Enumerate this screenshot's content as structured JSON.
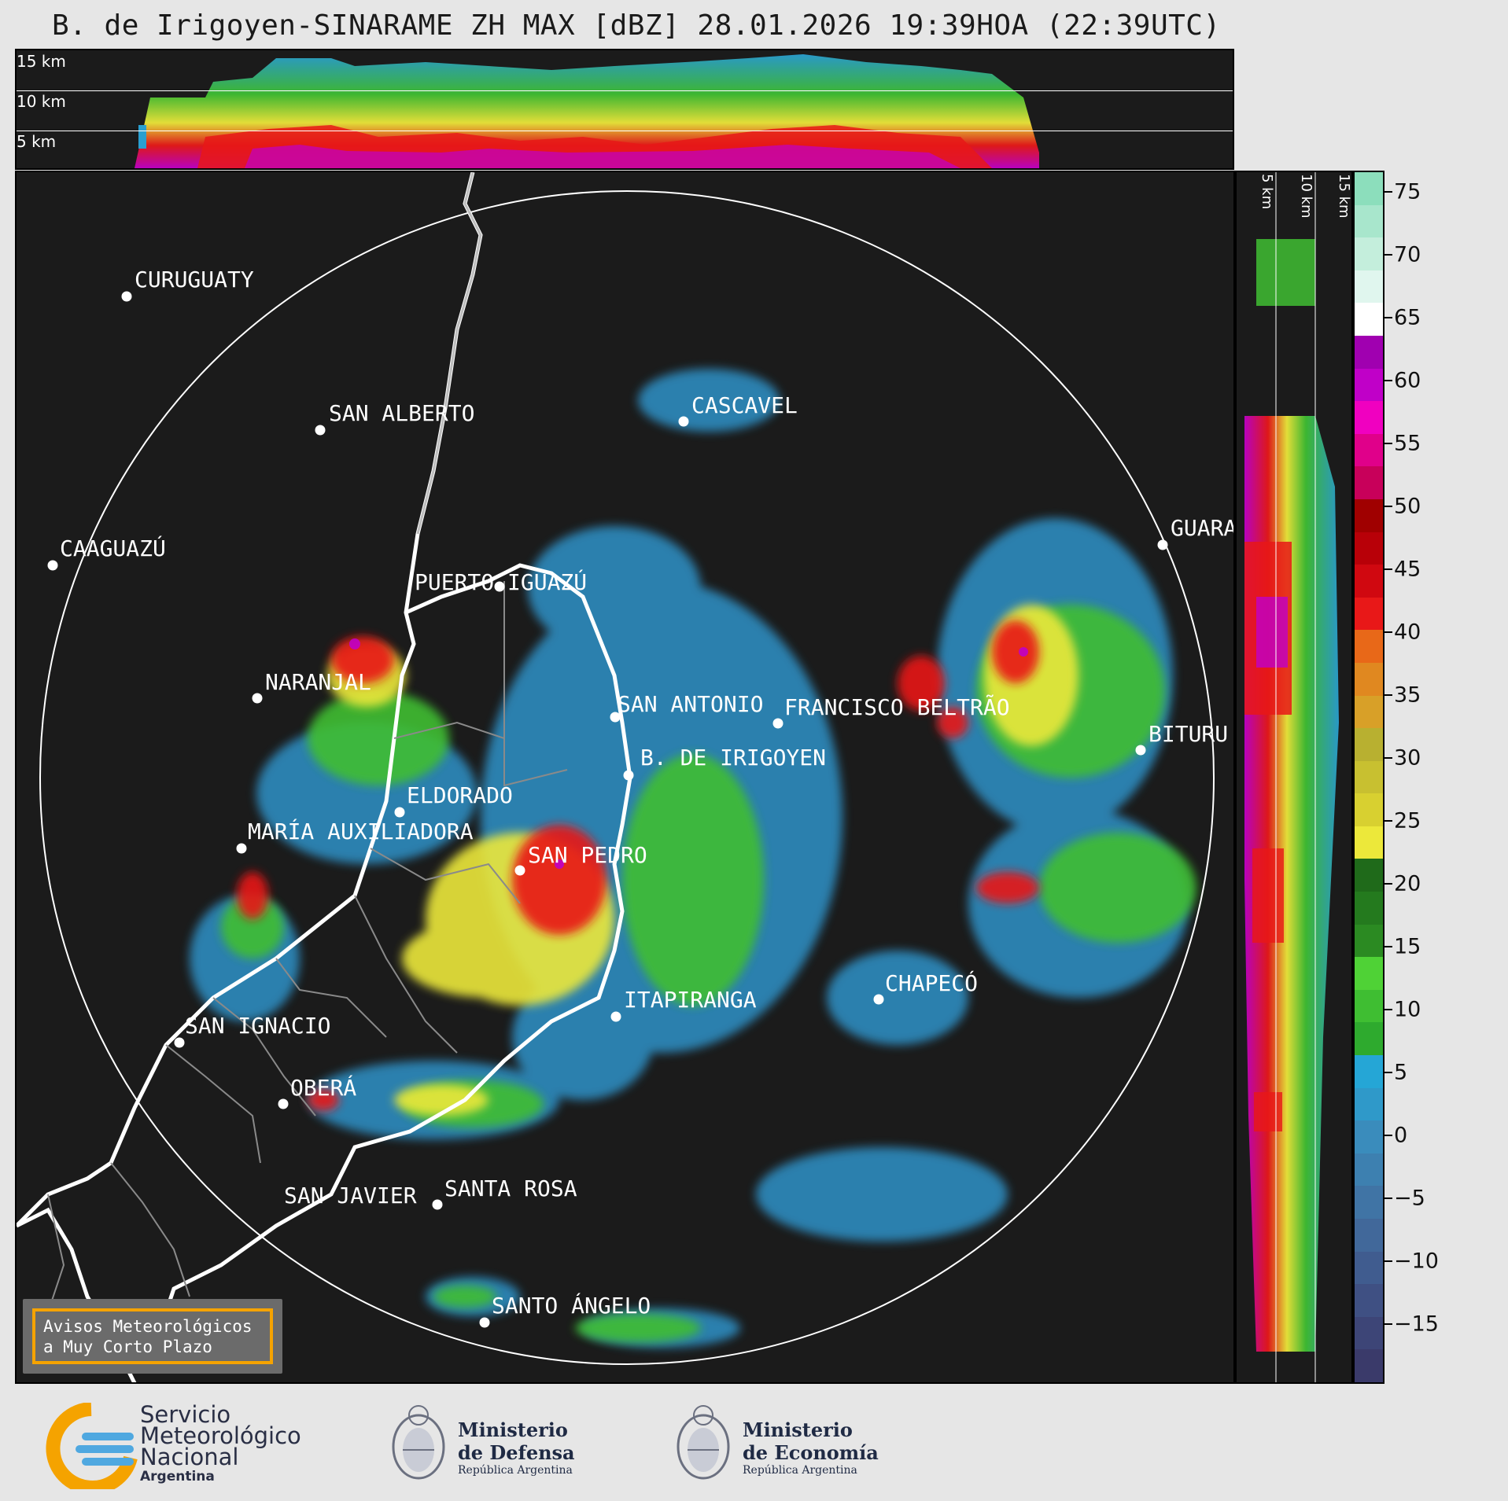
{
  "title": "B. de Irigoyen-SINARAME ZH MAX [dBZ] 28.01.2026 19:39HOA (22:39UTC)",
  "top_strip": {
    "labels": [
      "15 km",
      "10 km",
      "5 km"
    ]
  },
  "right_strip": {
    "labels": [
      "5 km",
      "10 km",
      "15 km"
    ]
  },
  "colorbar": {
    "unit": "dBZ",
    "ticks": [
      "75",
      "70",
      "65",
      "60",
      "55",
      "50",
      "45",
      "40",
      "35",
      "30",
      "25",
      "20",
      "15",
      "10",
      "5",
      "0",
      "−5",
      "−10",
      "−15"
    ],
    "colors": [
      "#3a3a6a",
      "#3d4577",
      "#3f5083",
      "#405c8f",
      "#41689a",
      "#4074a5",
      "#3d80b0",
      "#3a8cbc",
      "#2f99c9",
      "#25a6d6",
      "#2eaa2e",
      "#3fbe32",
      "#4fd236",
      "#2b8a22",
      "#247a1e",
      "#1f6a1a",
      "#ece83a",
      "#d8d030",
      "#c8c030",
      "#b8b030",
      "#d8a028",
      "#e08820",
      "#e86818",
      "#e81818",
      "#d00810",
      "#b80008",
      "#a00000",
      "#c8005a",
      "#e0008a",
      "#f000c0",
      "#c000c8",
      "#a000b0",
      "#ffffff",
      "#e0f6ee",
      "#c4eedc",
      "#a8e6cc",
      "#8cdebc"
    ]
  },
  "cities": [
    {
      "name": "CURUGUATY"
    },
    {
      "name": "SAN ALBERTO"
    },
    {
      "name": "CAAGUAZÚ"
    },
    {
      "name": "CASCAVEL"
    },
    {
      "name": "GUARA"
    },
    {
      "name": "PUERTO IGUAZÚ"
    },
    {
      "name": "NARANJAL"
    },
    {
      "name": "SAN ANTONIO"
    },
    {
      "name": "FRANCISCO BELTRÃO"
    },
    {
      "name": "BITURU"
    },
    {
      "name": "B. DE IRIGOYEN"
    },
    {
      "name": "ELDORADO"
    },
    {
      "name": "MARÍA AUXILIADORA"
    },
    {
      "name": "SAN PEDRO"
    },
    {
      "name": "CHAPECÓ"
    },
    {
      "name": "ITAPIRANGA"
    },
    {
      "name": "SAN IGNACIO"
    },
    {
      "name": "OBERÁ"
    },
    {
      "name": "SAN JAVIER"
    },
    {
      "name": "SANTA ROSA"
    },
    {
      "name": "SANTO ÁNGELO"
    }
  ],
  "avisos": {
    "line1": "Avisos Meteorológicos",
    "line2": "a Muy Corto Plazo"
  },
  "footer": {
    "smn": {
      "line1": "Servicio",
      "line2": "Meteorológico",
      "line3": "Nacional",
      "line4": "Argentina"
    },
    "defensa": {
      "line1": "Ministerio",
      "line2": "de Defensa",
      "line3": "República Argentina"
    },
    "economia": {
      "line1": "Ministerio",
      "line2": "de Economía",
      "line3": "República Argentina"
    }
  }
}
